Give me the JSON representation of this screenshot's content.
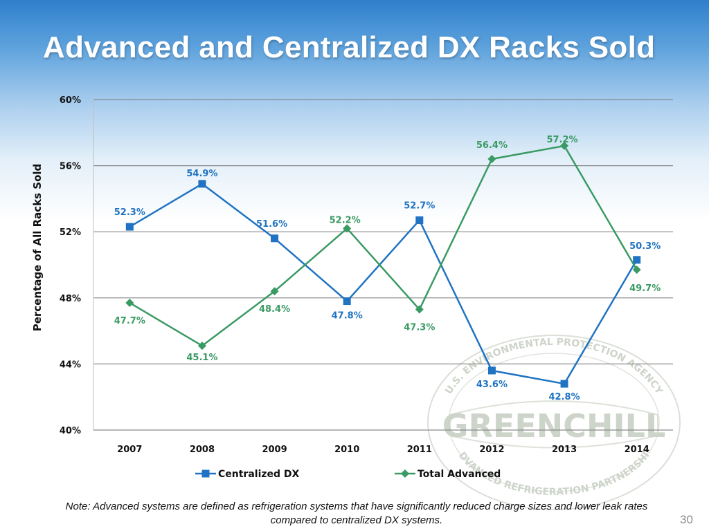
{
  "slide": {
    "title": "Advanced and Centralized DX Racks Sold",
    "note": "Note: Advanced systems are defined as refrigeration systems that have significantly reduced charge sizes and lower leak rates compared to centralized DX systems.",
    "page_number": "30"
  },
  "watermark": {
    "logo_text": "GREENCHILL",
    "ring_top": "U.S. ENVIRONMENTAL PROTECTION AGENCY",
    "ring_bottom": "ADVANCED REFRIGERATION PARTNERSHIP"
  },
  "chart_data": {
    "type": "line",
    "title": "",
    "xlabel": "",
    "ylabel": "Percentage of All Racks Sold",
    "categories": [
      "2007",
      "2008",
      "2009",
      "2010",
      "2011",
      "2012",
      "2013",
      "2014"
    ],
    "ylim": [
      40,
      60
    ],
    "yticks": [
      40,
      44,
      48,
      52,
      56,
      60
    ],
    "ytick_labels": [
      "40%",
      "44%",
      "48%",
      "52%",
      "56%",
      "60%"
    ],
    "grid": true,
    "legend_position": "bottom",
    "series": [
      {
        "name": "Centralized DX",
        "color": "#1f73c2",
        "marker": "square",
        "values": [
          52.3,
          54.9,
          51.6,
          47.8,
          52.7,
          43.6,
          42.8,
          50.3
        ],
        "labels": [
          "52.3%",
          "54.9%",
          "51.6%",
          "47.8%",
          "52.7%",
          "43.6%",
          "42.8%",
          "50.3%"
        ]
      },
      {
        "name": "Total Advanced",
        "color": "#3a9a63",
        "marker": "diamond",
        "values": [
          47.7,
          45.1,
          48.4,
          52.2,
          47.3,
          56.4,
          57.2,
          49.7
        ],
        "labels": [
          "47.7%",
          "45.1%",
          "48.4%",
          "52.2%",
          "47.3%",
          "56.4%",
          "57.2%",
          "49.7%"
        ]
      }
    ]
  }
}
